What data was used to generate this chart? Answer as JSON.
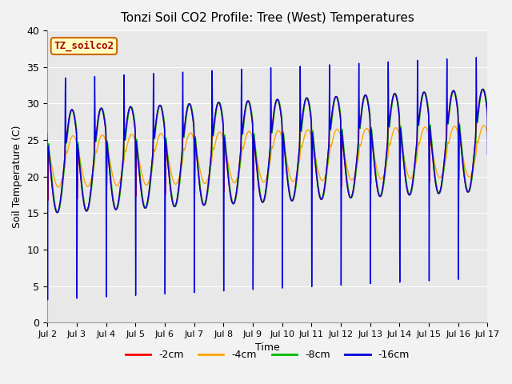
{
  "title": "Tonzi Soil CO2 Profile: Tree (West) Temperatures",
  "xlabel": "Time",
  "ylabel": "Soil Temperature (C)",
  "ylim": [
    0,
    40
  ],
  "xtick_labels": [
    "Jul 2",
    "Jul 3",
    "Jul 4",
    "Jul 5",
    "Jul 6",
    "Jul 7",
    "Jul 8",
    "Jul 9",
    "Jul 10",
    "Jul 11",
    "Jul 12",
    "Jul 13",
    "Jul 14",
    "Jul 15",
    "Jul 16",
    "Jul 17"
  ],
  "legend_label": "TZ_soilco2",
  "legend_bg": "#FFFFC0",
  "legend_border": "#8B0000",
  "colors": {
    "-2cm": "#FF0000",
    "-4cm": "#FFA500",
    "-8cm": "#00BB00",
    "-16cm": "#0000DD"
  },
  "line_labels": [
    "-2cm",
    "-4cm",
    "-8cm",
    "-16cm"
  ],
  "bg_color": "#E8E8E8",
  "grid_color": "#FFFFFF",
  "total_days": 15,
  "ppd": 2880
}
